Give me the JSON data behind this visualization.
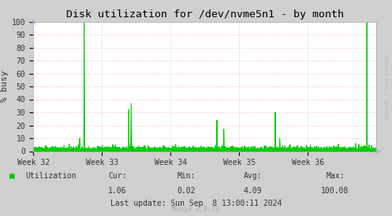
{
  "title": "Disk utilization for /dev/nvme5n1 - by month",
  "ylabel": "% busy",
  "watermark": "RRDTOOL / TOBI OETIKER",
  "munin_version": "Munin 2.0.73",
  "legend_label": "Utilization",
  "cur": "1.06",
  "min": "0.02",
  "avg": "4.09",
  "max": "100.08",
  "last_update": "Last update: Sun Sep  8 13:00:11 2024",
  "ylim": [
    0,
    100
  ],
  "yticks": [
    0,
    10,
    20,
    30,
    40,
    50,
    60,
    70,
    80,
    90,
    100
  ],
  "xtick_labels": [
    "Week 32",
    "Week 33",
    "Week 34",
    "Week 35",
    "Week 36"
  ],
  "bg_color": "#d0d0d0",
  "plot_bg_color": "#ffffff",
  "grid_color_h": "#ffaaaa",
  "grid_color_v": "#ccddee",
  "line_color": "#00cc00",
  "title_color": "#000000",
  "watermark_color": "#bbbbbb",
  "text_color": "#333333"
}
